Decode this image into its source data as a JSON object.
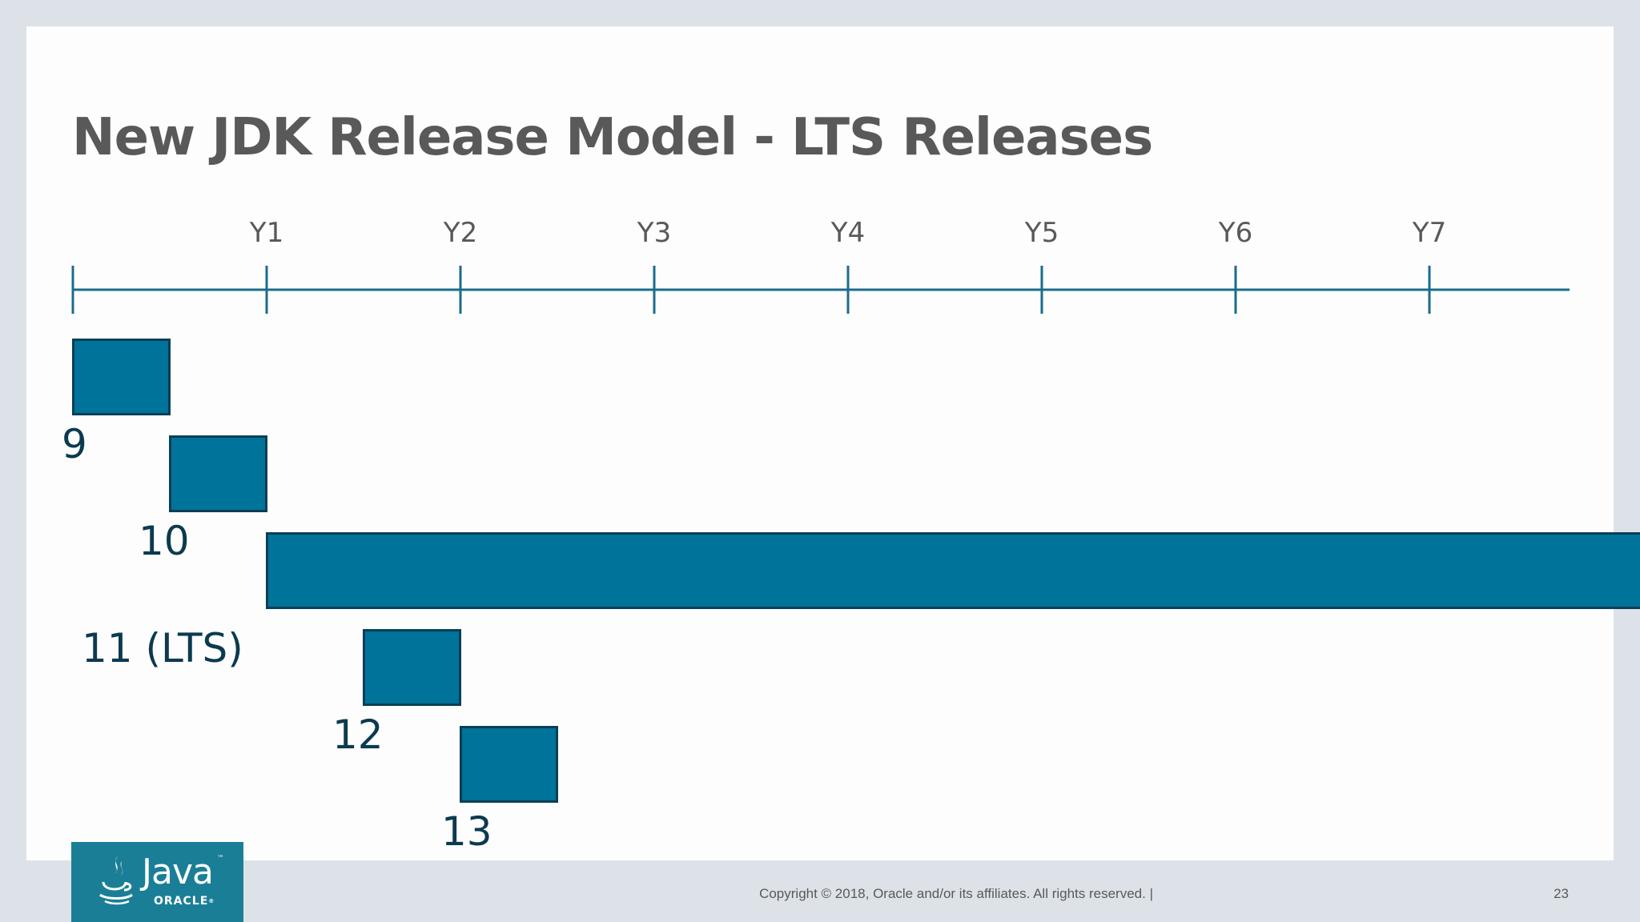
{
  "title": "New JDK Release Model - LTS Releases",
  "timeline": {
    "year_labels": [
      "Y1",
      "Y2",
      "Y3",
      "Y4",
      "Y5",
      "Y6",
      "Y7"
    ]
  },
  "releases": [
    {
      "label": "9",
      "start_year": 0,
      "end_year": 0.5
    },
    {
      "label": "10",
      "start_year": 0.5,
      "end_year": 1
    },
    {
      "label": "11 (LTS)",
      "start_year": 1,
      "end_year": 8.1
    },
    {
      "label": "12",
      "start_year": 1.5,
      "end_year": 2
    },
    {
      "label": "13",
      "start_year": 2,
      "end_year": 2.5
    }
  ],
  "colors": {
    "bar_fill": "#00739b",
    "bar_border": "#0c3f55",
    "axis": "#1b6c8c",
    "title": "#595959",
    "logo_background": "#1a7f96"
  },
  "logo": {
    "icon": "java-cup-icon",
    "word": "Java",
    "trademark": "™",
    "company": "ORACLE",
    "company_mark": "®"
  },
  "footer": {
    "copyright": "Copyright © 2018, Oracle and/or its affiliates. All rights reserved.  |",
    "page_number": "23"
  }
}
